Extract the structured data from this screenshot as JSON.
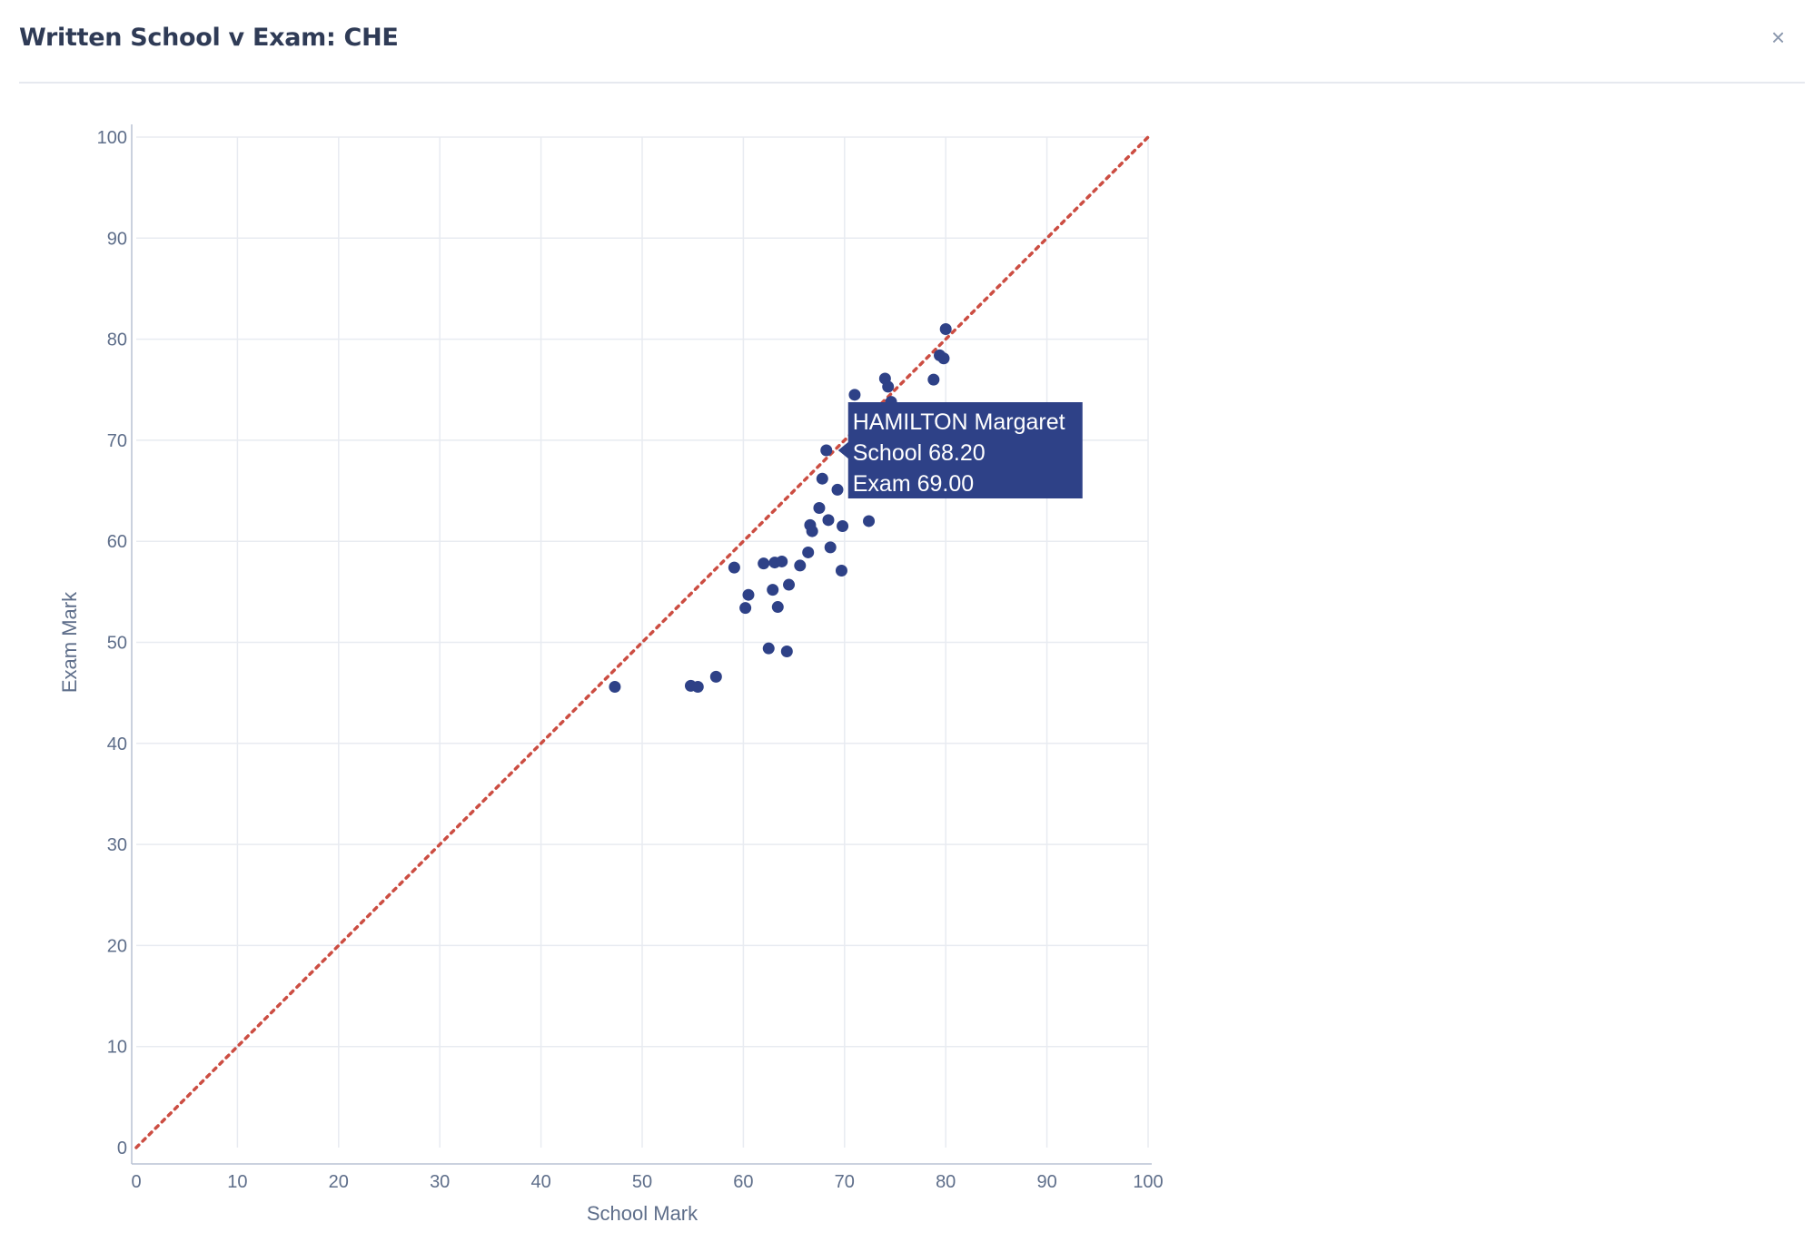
{
  "dialog": {
    "title": "Written School v Exam: CHE",
    "close_label": "×"
  },
  "colors": {
    "point": "#2e4187",
    "reference_line": "#cc4d42",
    "grid": "#e8ebf1",
    "axis_line": "#b9c2d3",
    "tooltip_bg": "#2e4187"
  },
  "chart_data": {
    "type": "scatter",
    "xlabel": "School Mark",
    "ylabel": "Exam Mark",
    "xlim": [
      0,
      100
    ],
    "ylim": [
      0,
      100
    ],
    "xticks": [
      0,
      10,
      20,
      30,
      40,
      50,
      60,
      70,
      80,
      90,
      100
    ],
    "yticks": [
      0,
      10,
      20,
      30,
      40,
      50,
      60,
      70,
      80,
      90,
      100
    ],
    "grid": true,
    "reference_line": {
      "style": "dotted",
      "from": [
        0,
        0
      ],
      "to": [
        100,
        100
      ]
    },
    "points": [
      {
        "x": 47.3,
        "y": 45.6
      },
      {
        "x": 54.8,
        "y": 45.7
      },
      {
        "x": 55.5,
        "y": 45.6
      },
      {
        "x": 57.3,
        "y": 46.6
      },
      {
        "x": 59.1,
        "y": 57.4
      },
      {
        "x": 60.2,
        "y": 53.4
      },
      {
        "x": 60.5,
        "y": 54.7
      },
      {
        "x": 62.0,
        "y": 57.8
      },
      {
        "x": 62.5,
        "y": 49.4
      },
      {
        "x": 62.9,
        "y": 55.2
      },
      {
        "x": 63.1,
        "y": 57.9
      },
      {
        "x": 63.4,
        "y": 53.5
      },
      {
        "x": 63.8,
        "y": 58.0
      },
      {
        "x": 64.3,
        "y": 49.1
      },
      {
        "x": 64.5,
        "y": 55.7
      },
      {
        "x": 65.6,
        "y": 57.6
      },
      {
        "x": 66.4,
        "y": 58.9
      },
      {
        "x": 66.6,
        "y": 61.6
      },
      {
        "x": 66.8,
        "y": 61.0
      },
      {
        "x": 67.5,
        "y": 63.3
      },
      {
        "x": 67.8,
        "y": 66.2
      },
      {
        "x": 68.2,
        "y": 69.0
      },
      {
        "x": 68.4,
        "y": 62.1
      },
      {
        "x": 68.6,
        "y": 59.4
      },
      {
        "x": 69.3,
        "y": 65.1
      },
      {
        "x": 69.7,
        "y": 57.1
      },
      {
        "x": 69.8,
        "y": 61.5
      },
      {
        "x": 71.0,
        "y": 74.5
      },
      {
        "x": 72.4,
        "y": 62.0
      },
      {
        "x": 74.0,
        "y": 76.1
      },
      {
        "x": 74.3,
        "y": 75.3
      },
      {
        "x": 74.6,
        "y": 73.8
      },
      {
        "x": 78.8,
        "y": 76.0
      },
      {
        "x": 79.4,
        "y": 78.4
      },
      {
        "x": 79.8,
        "y": 78.1
      },
      {
        "x": 80.0,
        "y": 81.0
      }
    ],
    "tooltip": {
      "name": "HAMILTON Margaret",
      "school_line": "School 68.20",
      "exam_line": "Exam 69.00",
      "x": 68.2,
      "y": 69.0
    }
  }
}
